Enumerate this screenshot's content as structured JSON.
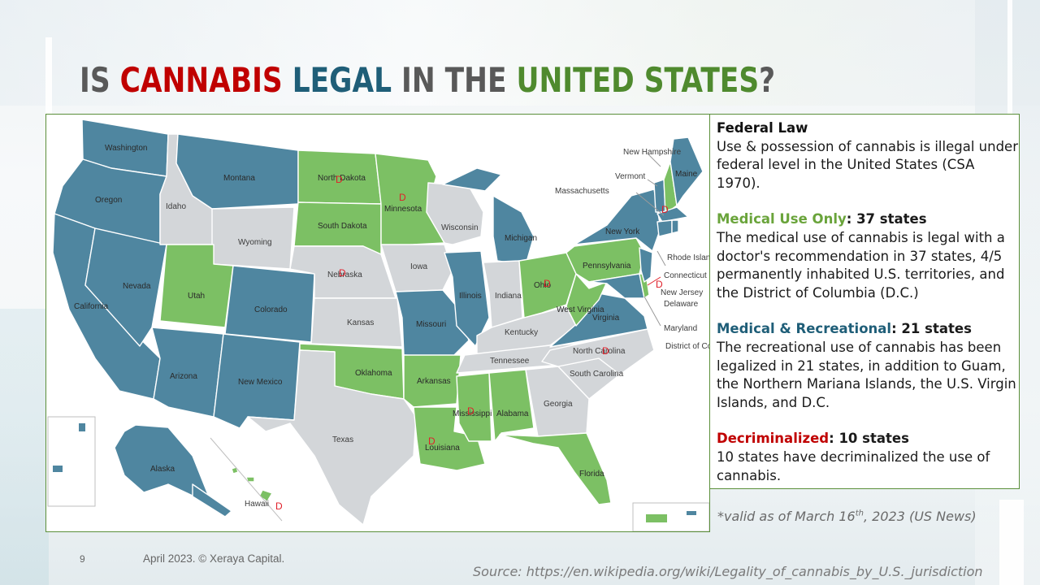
{
  "title": {
    "part1": "IS ",
    "part2": "CANNABIS",
    "part3": " LEGAL",
    "part4": " IN THE ",
    "part5": "UNITED STATES",
    "part6": "?"
  },
  "colors": {
    "recreational": "#4f86a0",
    "medical": "#7cc064",
    "illegal": "#d3d6d9",
    "decriminalized_mark": "#e0202a",
    "title_red": "#c00000",
    "title_blue": "#1f5e78",
    "title_green": "#4f8a2e"
  },
  "map": {
    "decriminalized_mark": "D",
    "states": {
      "washington": "Washington",
      "oregon": "Oregon",
      "california": "California",
      "nevada": "Nevada",
      "idaho": "Idaho",
      "montana": "Montana",
      "wyoming": "Wyoming",
      "utah": "Utah",
      "colorado": "Colorado",
      "arizona": "Arizona",
      "new_mexico": "New Mexico",
      "north_dakota": "North Dakota",
      "south_dakota": "South Dakota",
      "nebraska": "Nebraska",
      "kansas": "Kansas",
      "oklahoma": "Oklahoma",
      "texas": "Texas",
      "minnesota": "Minnesota",
      "iowa": "Iowa",
      "missouri": "Missouri",
      "arkansas": "Arkansas",
      "louisiana": "Louisiana",
      "wisconsin": "Wisconsin",
      "illinois": "Illinois",
      "michigan": "Michigan",
      "indiana": "Indiana",
      "ohio": "Ohio",
      "kentucky": "Kentucky",
      "tennessee": "Tennessee",
      "mississippi": "Mississippi",
      "alabama": "Alabama",
      "georgia": "Georgia",
      "florida": "Florida",
      "south_carolina": "South Carolina",
      "north_carolina": "North Carolina",
      "virginia": "Virginia",
      "west_virginia": "West Virginia",
      "pennsylvania": "Pennsylvania",
      "new_york": "New York",
      "maine": "Maine",
      "new_hampshire": "New Hampshire",
      "vermont": "Vermont",
      "massachusetts": "Massachusetts",
      "rhode_island": "Rhode Island",
      "connecticut": "Connecticut",
      "new_jersey": "New Jersey",
      "delaware": "Delaware",
      "maryland": "Maryland",
      "district_of_columbia": "District of Columbia",
      "alaska": "Alaska",
      "hawaii": "Hawaii"
    }
  },
  "info": {
    "federal": {
      "heading": "Federal Law",
      "text": "Use & possession of cannabis is illegal under federal level in the United States (CSA 1970)."
    },
    "medical": {
      "heading": "Medical Use Only",
      "count": ": 37 states",
      "text": "The medical use of cannabis is legal with a doctor's recommendation in 37 states, 4/5 permanently inhabited U.S. territories, and the District of Columbia (D.C.)"
    },
    "recreational": {
      "heading": "Medical & Recreational",
      "count": ": 21 states",
      "text": "The recreational use of cannabis has been legalized in 21 states, in addition to Guam, the Northern Mariana Islands, the U.S. Virgin Islands, and D.C."
    },
    "decriminalized": {
      "heading": "Decriminalized",
      "count": ": 10 states",
      "text": "10 states have decriminalized the use of cannabis."
    }
  },
  "valid_note": {
    "prefix": "*valid as of March 16",
    "sup": "th",
    "suffix": ", 2023 (US News)"
  },
  "footer": {
    "page_number": "9",
    "copyright": "April 2023. © Xeraya Capital.",
    "source": "Source: https://en.wikipedia.org/wiki/Legality_of_cannabis_by_U.S._jurisdiction"
  }
}
